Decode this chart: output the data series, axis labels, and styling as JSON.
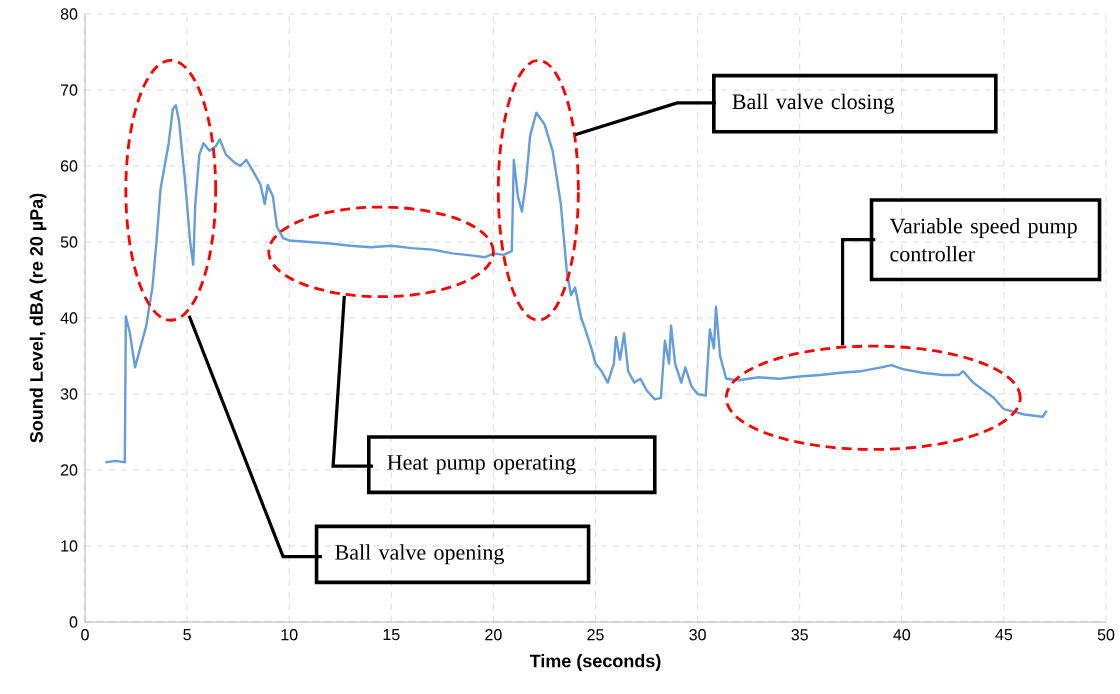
{
  "chart_data": {
    "type": "line",
    "xlabel": "Time (seconds)",
    "ylabel": "Sound Level, dBA (re 20 µPa)",
    "x": [
      1.0,
      1.5,
      1.95,
      2.0,
      2.2,
      2.45,
      2.7,
      3.0,
      3.3,
      3.5,
      3.7,
      3.9,
      4.1,
      4.3,
      4.45,
      4.6,
      4.9,
      5.15,
      5.3,
      5.4,
      5.6,
      5.8,
      6.1,
      6.4,
      6.6,
      6.9,
      7.3,
      7.6,
      7.9,
      8.3,
      8.6,
      8.8,
      8.95,
      9.2,
      9.4,
      9.7,
      10,
      11,
      12,
      13,
      14,
      15,
      16,
      17,
      18,
      19,
      19.6,
      20,
      20.5,
      20.9,
      21.0,
      21.2,
      21.4,
      21.6,
      21.8,
      22.1,
      22.5,
      22.9,
      23.3,
      23.6,
      23.8,
      24,
      24.3,
      24.5,
      24.8,
      25,
      25.3,
      25.6,
      25.9,
      26.0,
      26.2,
      26.4,
      26.6,
      26.9,
      27.2,
      27.5,
      27.9,
      28.2,
      28.4,
      28.6,
      28.7,
      28.9,
      29.2,
      29.4,
      29.7,
      30,
      30.4,
      30.6,
      30.8,
      30.9,
      31.1,
      31.4,
      32,
      33,
      34,
      35,
      36,
      37,
      38,
      39,
      39.5,
      40,
      41,
      42,
      42.8,
      43,
      43.5,
      44.5,
      45,
      46,
      46.9,
      47.1
    ],
    "values": [
      21,
      21.2,
      21,
      40.2,
      38,
      33.5,
      36,
      39,
      44,
      50,
      57,
      60,
      63,
      67.5,
      68,
      66,
      58,
      50,
      47,
      55,
      61.5,
      63,
      62,
      62.6,
      63.5,
      61.5,
      60.5,
      60,
      60.8,
      59,
      57.5,
      55,
      57.5,
      56,
      52,
      50.5,
      50.2,
      50,
      49.8,
      49.5,
      49.3,
      49.5,
      49.2,
      49,
      48.5,
      48.2,
      48,
      48.5,
      48.3,
      48.8,
      60.8,
      56,
      54,
      58,
      64,
      67,
      65.5,
      62,
      55,
      46,
      43,
      44,
      40,
      38.5,
      36,
      34,
      33,
      31.5,
      34,
      37.5,
      34.5,
      38,
      33,
      31.5,
      32,
      30.5,
      29.3,
      29.5,
      37,
      34,
      39,
      34,
      31.5,
      33.5,
      31,
      30,
      29.8,
      38.5,
      36,
      41.5,
      35,
      32,
      31.8,
      32.2,
      32,
      32.3,
      32.5,
      32.8,
      33,
      33.5,
      33.8,
      33.3,
      32.8,
      32.5,
      32.5,
      33,
      31.5,
      29.5,
      28,
      27.3,
      27,
      27.8
    ],
    "color": "#659ddb",
    "xlim": [
      0,
      50
    ],
    "xticks": [
      0,
      5,
      10,
      15,
      20,
      25,
      30,
      35,
      40,
      45,
      50
    ],
    "ylim": [
      0,
      80
    ],
    "yticks": [
      0,
      10,
      20,
      30,
      40,
      50,
      60,
      70,
      80
    ],
    "grid": true,
    "annotations": [
      "Ball valve opening",
      "Heat pump operating",
      "Ball valve closing",
      "Variable speed pump controller"
    ]
  }
}
